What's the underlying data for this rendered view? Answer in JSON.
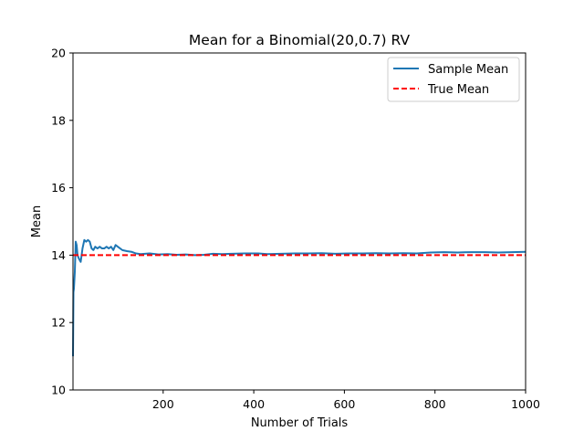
{
  "chart_data": {
    "type": "line",
    "title": "Mean for a Binomial(20,0.7) RV",
    "xlabel": "Number of Trials",
    "ylabel": "Mean",
    "xlim": [
      1,
      1000
    ],
    "ylim": [
      10,
      20
    ],
    "xticks": [
      200,
      400,
      600,
      800,
      1000
    ],
    "yticks": [
      10,
      12,
      14,
      16,
      18,
      20
    ],
    "grid": false,
    "legend_position": "top-right",
    "series": [
      {
        "name": "Sample Mean",
        "style": "solid",
        "color": "#1f77b4",
        "points": [
          [
            1,
            11.0
          ],
          [
            2,
            12.9
          ],
          [
            3,
            13.0
          ],
          [
            5,
            13.5
          ],
          [
            7,
            14.4
          ],
          [
            9,
            14.3
          ],
          [
            11,
            14.0
          ],
          [
            14,
            13.9
          ],
          [
            18,
            13.8
          ],
          [
            22,
            14.2
          ],
          [
            26,
            14.45
          ],
          [
            30,
            14.4
          ],
          [
            34,
            14.45
          ],
          [
            38,
            14.4
          ],
          [
            42,
            14.2
          ],
          [
            46,
            14.15
          ],
          [
            50,
            14.25
          ],
          [
            55,
            14.2
          ],
          [
            60,
            14.25
          ],
          [
            65,
            14.2
          ],
          [
            70,
            14.2
          ],
          [
            75,
            14.25
          ],
          [
            80,
            14.2
          ],
          [
            85,
            14.25
          ],
          [
            90,
            14.15
          ],
          [
            95,
            14.3
          ],
          [
            100,
            14.25
          ],
          [
            105,
            14.2
          ],
          [
            110,
            14.15
          ],
          [
            120,
            14.12
          ],
          [
            130,
            14.1
          ],
          [
            140,
            14.05
          ],
          [
            150,
            14.03
          ],
          [
            170,
            14.05
          ],
          [
            190,
            14.02
          ],
          [
            210,
            14.03
          ],
          [
            230,
            14.01
          ],
          [
            250,
            14.02
          ],
          [
            270,
            14.0
          ],
          [
            290,
            14.01
          ],
          [
            310,
            14.04
          ],
          [
            330,
            14.03
          ],
          [
            350,
            14.04
          ],
          [
            380,
            14.05
          ],
          [
            410,
            14.05
          ],
          [
            430,
            14.03
          ],
          [
            460,
            14.04
          ],
          [
            490,
            14.05
          ],
          [
            520,
            14.05
          ],
          [
            550,
            14.06
          ],
          [
            580,
            14.04
          ],
          [
            610,
            14.05
          ],
          [
            640,
            14.05
          ],
          [
            670,
            14.06
          ],
          [
            700,
            14.05
          ],
          [
            730,
            14.06
          ],
          [
            760,
            14.05
          ],
          [
            790,
            14.08
          ],
          [
            820,
            14.09
          ],
          [
            850,
            14.08
          ],
          [
            880,
            14.09
          ],
          [
            910,
            14.09
          ],
          [
            940,
            14.08
          ],
          [
            970,
            14.09
          ],
          [
            1000,
            14.1
          ]
        ]
      },
      {
        "name": "True Mean",
        "style": "dashed",
        "color": "#ff0000",
        "points": [
          [
            1,
            14.0
          ],
          [
            1000,
            14.0
          ]
        ]
      }
    ]
  }
}
